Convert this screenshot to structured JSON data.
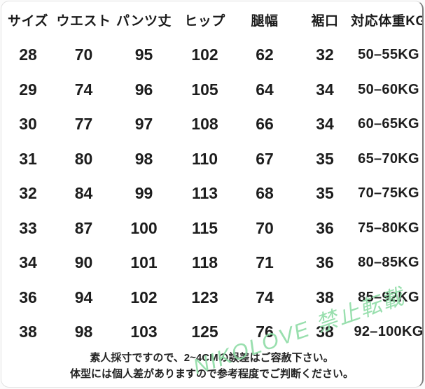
{
  "chart_data": {
    "type": "table",
    "columns": [
      "サイズ",
      "ウエスト",
      "パンツ丈",
      "ヒップ",
      "腿幅",
      "裾口",
      "対応体重KG"
    ],
    "rows": [
      [
        "28",
        "70",
        "95",
        "102",
        "62",
        "32",
        "50–55KG"
      ],
      [
        "29",
        "74",
        "96",
        "105",
        "64",
        "34",
        "50–60KG"
      ],
      [
        "30",
        "77",
        "97",
        "108",
        "66",
        "34",
        "60–65KG"
      ],
      [
        "31",
        "80",
        "98",
        "110",
        "67",
        "35",
        "65–70KG"
      ],
      [
        "32",
        "84",
        "99",
        "113",
        "68",
        "35",
        "70–75KG"
      ],
      [
        "33",
        "87",
        "100",
        "115",
        "70",
        "36",
        "75–80KG"
      ],
      [
        "34",
        "90",
        "101",
        "118",
        "71",
        "36",
        "80–85KG"
      ],
      [
        "36",
        "94",
        "102",
        "123",
        "74",
        "38",
        "85–92KG"
      ],
      [
        "38",
        "98",
        "103",
        "125",
        "76",
        "38",
        "92–100KG"
      ]
    ]
  },
  "footer": {
    "note_line1": "素人採寸ですので、2~4CMの誤差はご容赦下さい。",
    "note_line2": "体型には個人差がありますので参考程度でご判断ください。"
  },
  "watermark": {
    "text": "NIKOLOVE 禁止転載",
    "color": "#8edca6"
  },
  "colors": {
    "text": "#1b1b1b",
    "background": "#ffffff",
    "card_border_right": "#7d7d7d",
    "card_border_light": "#e2e2e2"
  }
}
